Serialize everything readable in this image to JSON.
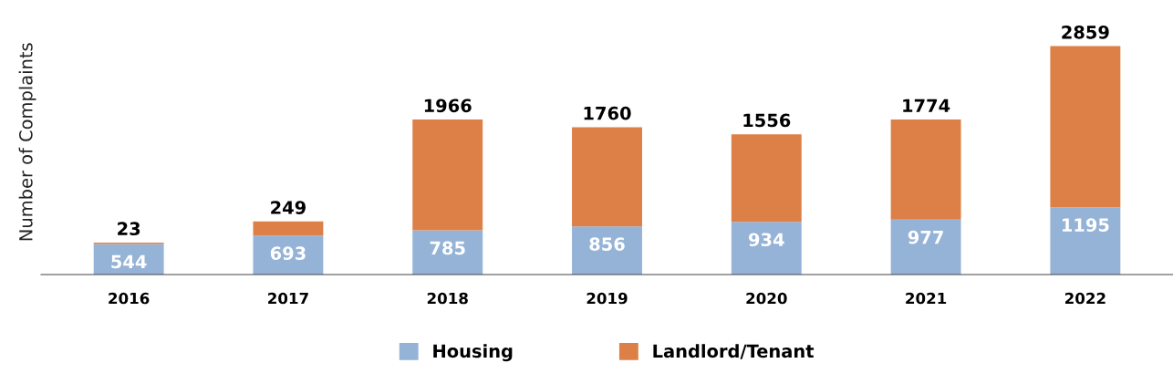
{
  "chart_data": {
    "type": "bar",
    "stacked": true,
    "data_labels": true,
    "ylabel": "Number of Complaints",
    "legend": "bottom",
    "grid": false,
    "categories": [
      "2016",
      "2017",
      "2018",
      "2019",
      "2020",
      "2021",
      "2022"
    ],
    "series": [
      {
        "name": "Housing",
        "color": "#95b3d7",
        "values": [
          544,
          693,
          785,
          856,
          934,
          977,
          1195
        ]
      },
      {
        "name": "Landlord/Tenant",
        "color": "#dd8047",
        "values": [
          23,
          249,
          1966,
          1760,
          1556,
          1774,
          2859
        ]
      }
    ]
  }
}
